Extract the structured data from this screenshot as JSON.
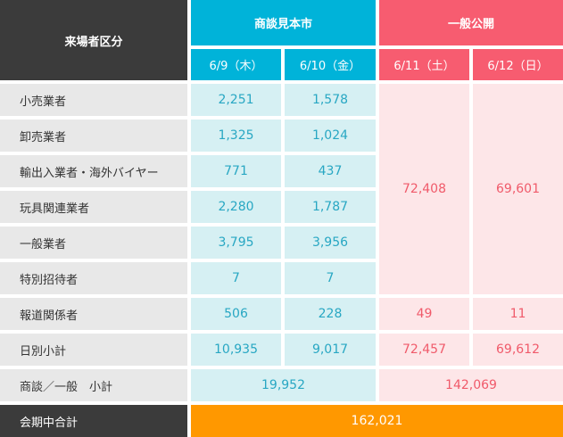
{
  "header": {
    "category_label": "来場者区分",
    "trade_label": "商談見本市",
    "public_label": "一般公開",
    "dates": [
      "6/9（木）",
      "6/10（金）",
      "6/11（土）",
      "6/12（日）"
    ]
  },
  "rows": [
    {
      "label": "小売業者",
      "d1": "2,251",
      "d2": "1,578"
    },
    {
      "label": "卸売業者",
      "d1": "1,325",
      "d2": "1,024"
    },
    {
      "label": "輸出入業者・海外バイヤー",
      "d1": "771",
      "d2": "437"
    },
    {
      "label": "玩具関連業者",
      "d1": "2,280",
      "d2": "1,787"
    },
    {
      "label": "一般業者",
      "d1": "3,795",
      "d2": "3,956"
    },
    {
      "label": "特別招待者",
      "d1": "7",
      "d2": "7"
    }
  ],
  "public_merged": {
    "d3": "72,408",
    "d4": "69,601"
  },
  "press": {
    "label": "報道関係者",
    "d1": "506",
    "d2": "228",
    "d3": "49",
    "d4": "11"
  },
  "daily": {
    "label": "日別小計",
    "d1": "10,935",
    "d2": "9,017",
    "d3": "72,457",
    "d4": "69,612"
  },
  "subtotal": {
    "label": "商談／一般　小計",
    "trade": "19,952",
    "public": "142,069"
  },
  "total": {
    "label": "会期中合計",
    "value": "162,021"
  },
  "colors": {
    "dark": "#3b3b3b",
    "teal": "#00b3d9",
    "pink": "#f75c70",
    "orange": "#ff9800",
    "teal_light": "#d6f0f3",
    "pink_light": "#fde6e8"
  }
}
